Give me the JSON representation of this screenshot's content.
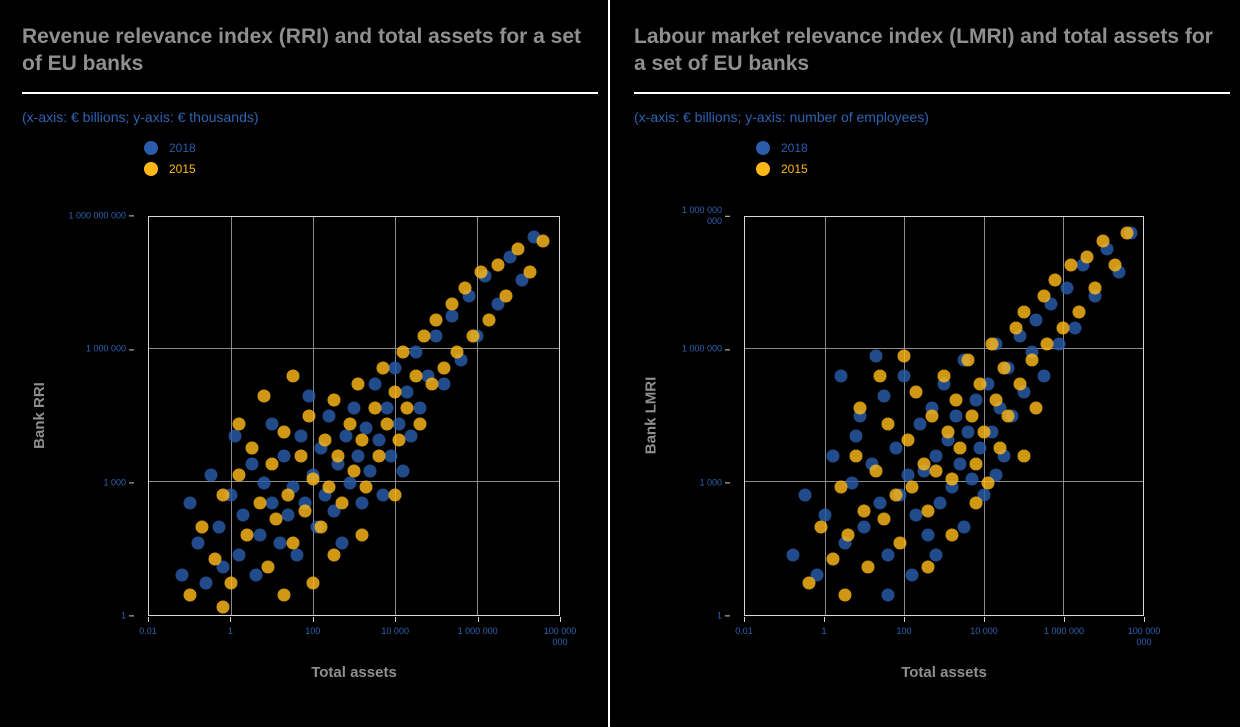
{
  "panels": [
    {
      "title": "Revenue relevance index (RRI) and total assets for a set of EU banks",
      "subtitle": "(x-axis: € billions; y-axis: € thousands)"
    },
    {
      "title": "Labour market relevance index (LMRI) and total assets for a set of EU banks",
      "subtitle": "(x-axis: € billions; y-axis: number of employees)"
    }
  ],
  "legend": {
    "items": [
      {
        "label": "2018",
        "color": "#2a5caa"
      },
      {
        "label": "2015",
        "color": "#fdb817"
      }
    ]
  },
  "colors": {
    "background": "#000000",
    "title": "#8f8f8f",
    "subtitle": "#2e63b2",
    "gridline": "#8a8a8a",
    "plot_border": "#d8d8d8",
    "blue_series": "#2a5caa",
    "gold_series": "#fdb817"
  },
  "chart_data": [
    {
      "type": "scatter",
      "title": "Revenue relevance index (RRI) and total assets for a set of EU banks",
      "xlabel": "Total assets",
      "ylabel": "Bank RRI",
      "x_axis_units": "€ billions",
      "y_axis_units": "€ thousands",
      "x_scale": "log",
      "y_scale": "log",
      "x_ticks": [
        "0.01",
        "1",
        "100",
        "10 000",
        "1 000 000",
        "100 000 000"
      ],
      "y_ticks": [
        "1",
        "1 000",
        "1 000 000",
        "1 000 000 000"
      ],
      "points_format": "each point is [x,y] as fraction of plot area on log-log axes",
      "series": [
        {
          "name": "2018",
          "color": "#2a5caa",
          "points": [
            [
              0.08,
              0.1
            ],
            [
              0.1,
              0.28
            ],
            [
              0.12,
              0.18
            ],
            [
              0.14,
              0.08
            ],
            [
              0.15,
              0.35
            ],
            [
              0.17,
              0.22
            ],
            [
              0.18,
              0.12
            ],
            [
              0.2,
              0.3
            ],
            [
              0.21,
              0.45
            ],
            [
              0.22,
              0.15
            ],
            [
              0.23,
              0.25
            ],
            [
              0.25,
              0.38
            ],
            [
              0.26,
              0.1
            ],
            [
              0.27,
              0.2
            ],
            [
              0.28,
              0.33
            ],
            [
              0.3,
              0.28
            ],
            [
              0.3,
              0.48
            ],
            [
              0.32,
              0.18
            ],
            [
              0.33,
              0.4
            ],
            [
              0.34,
              0.25
            ],
            [
              0.35,
              0.32
            ],
            [
              0.36,
              0.15
            ],
            [
              0.37,
              0.45
            ],
            [
              0.38,
              0.28
            ],
            [
              0.39,
              0.55
            ],
            [
              0.4,
              0.35
            ],
            [
              0.41,
              0.22
            ],
            [
              0.42,
              0.42
            ],
            [
              0.43,
              0.3
            ],
            [
              0.44,
              0.5
            ],
            [
              0.45,
              0.26
            ],
            [
              0.46,
              0.38
            ],
            [
              0.47,
              0.18
            ],
            [
              0.48,
              0.45
            ],
            [
              0.49,
              0.33
            ],
            [
              0.5,
              0.52
            ],
            [
              0.51,
              0.4
            ],
            [
              0.52,
              0.28
            ],
            [
              0.53,
              0.47
            ],
            [
              0.54,
              0.36
            ],
            [
              0.55,
              0.58
            ],
            [
              0.56,
              0.44
            ],
            [
              0.57,
              0.3
            ],
            [
              0.58,
              0.52
            ],
            [
              0.59,
              0.4
            ],
            [
              0.6,
              0.62
            ],
            [
              0.61,
              0.48
            ],
            [
              0.62,
              0.36
            ],
            [
              0.63,
              0.56
            ],
            [
              0.64,
              0.45
            ],
            [
              0.65,
              0.66
            ],
            [
              0.66,
              0.52
            ],
            [
              0.68,
              0.6
            ],
            [
              0.7,
              0.7
            ],
            [
              0.72,
              0.58
            ],
            [
              0.74,
              0.75
            ],
            [
              0.76,
              0.64
            ],
            [
              0.78,
              0.8
            ],
            [
              0.8,
              0.7
            ],
            [
              0.82,
              0.85
            ],
            [
              0.85,
              0.78
            ],
            [
              0.88,
              0.9
            ],
            [
              0.91,
              0.84
            ],
            [
              0.94,
              0.95
            ]
          ]
        },
        {
          "name": "2015",
          "color": "#fdb817",
          "points": [
            [
              0.1,
              0.05
            ],
            [
              0.13,
              0.22
            ],
            [
              0.16,
              0.14
            ],
            [
              0.18,
              0.3
            ],
            [
              0.2,
              0.08
            ],
            [
              0.22,
              0.35
            ],
            [
              0.24,
              0.2
            ],
            [
              0.25,
              0.42
            ],
            [
              0.27,
              0.28
            ],
            [
              0.29,
              0.12
            ],
            [
              0.3,
              0.38
            ],
            [
              0.31,
              0.24
            ],
            [
              0.33,
              0.46
            ],
            [
              0.34,
              0.3
            ],
            [
              0.35,
              0.18
            ],
            [
              0.37,
              0.4
            ],
            [
              0.38,
              0.26
            ],
            [
              0.39,
              0.5
            ],
            [
              0.4,
              0.34
            ],
            [
              0.42,
              0.22
            ],
            [
              0.43,
              0.44
            ],
            [
              0.44,
              0.32
            ],
            [
              0.45,
              0.54
            ],
            [
              0.46,
              0.4
            ],
            [
              0.47,
              0.28
            ],
            [
              0.49,
              0.48
            ],
            [
              0.5,
              0.36
            ],
            [
              0.51,
              0.58
            ],
            [
              0.52,
              0.44
            ],
            [
              0.53,
              0.32
            ],
            [
              0.55,
              0.52
            ],
            [
              0.56,
              0.4
            ],
            [
              0.57,
              0.62
            ],
            [
              0.58,
              0.48
            ],
            [
              0.6,
              0.56
            ],
            [
              0.61,
              0.44
            ],
            [
              0.62,
              0.66
            ],
            [
              0.63,
              0.52
            ],
            [
              0.65,
              0.6
            ],
            [
              0.66,
              0.48
            ],
            [
              0.67,
              0.7
            ],
            [
              0.69,
              0.58
            ],
            [
              0.7,
              0.74
            ],
            [
              0.72,
              0.62
            ],
            [
              0.74,
              0.78
            ],
            [
              0.75,
              0.66
            ],
            [
              0.77,
              0.82
            ],
            [
              0.79,
              0.7
            ],
            [
              0.81,
              0.86
            ],
            [
              0.83,
              0.74
            ],
            [
              0.85,
              0.88
            ],
            [
              0.87,
              0.8
            ],
            [
              0.9,
              0.92
            ],
            [
              0.93,
              0.86
            ],
            [
              0.96,
              0.94
            ],
            [
              0.28,
              0.55
            ],
            [
              0.35,
              0.6
            ],
            [
              0.22,
              0.48
            ],
            [
              0.45,
              0.15
            ],
            [
              0.52,
              0.2
            ],
            [
              0.6,
              0.3
            ],
            [
              0.4,
              0.08
            ],
            [
              0.33,
              0.05
            ],
            [
              0.18,
              0.02
            ]
          ]
        }
      ]
    },
    {
      "type": "scatter",
      "title": "Labour market relevance index (LMRI) and total assets for a set of EU banks",
      "xlabel": "Total assets",
      "ylabel": "Bank LMRI",
      "x_axis_units": "€ billions",
      "y_axis_units": "number of employees",
      "x_scale": "log",
      "y_scale": "log",
      "x_ticks": [
        "0.01",
        "1",
        "100",
        "10 000",
        "1 000 000",
        "100 000 000"
      ],
      "y_ticks": [
        "1",
        "1 000",
        "1 000 000",
        "1 000 000 000"
      ],
      "points_format": "each point is [x,y] as fraction of plot area on log-log axes",
      "series": [
        {
          "name": "2018",
          "color": "#2a5caa",
          "points": [
            [
              0.12,
              0.15
            ],
            [
              0.15,
              0.3
            ],
            [
              0.18,
              0.1
            ],
            [
              0.2,
              0.25
            ],
            [
              0.22,
              0.4
            ],
            [
              0.25,
              0.18
            ],
            [
              0.27,
              0.33
            ],
            [
              0.29,
              0.5
            ],
            [
              0.3,
              0.22
            ],
            [
              0.32,
              0.38
            ],
            [
              0.34,
              0.28
            ],
            [
              0.35,
              0.55
            ],
            [
              0.36,
              0.15
            ],
            [
              0.38,
              0.42
            ],
            [
              0.39,
              0.3
            ],
            [
              0.4,
              0.6
            ],
            [
              0.41,
              0.35
            ],
            [
              0.43,
              0.25
            ],
            [
              0.44,
              0.48
            ],
            [
              0.45,
              0.36
            ],
            [
              0.46,
              0.2
            ],
            [
              0.47,
              0.52
            ],
            [
              0.48,
              0.4
            ],
            [
              0.49,
              0.28
            ],
            [
              0.5,
              0.58
            ],
            [
              0.51,
              0.44
            ],
            [
              0.52,
              0.32
            ],
            [
              0.53,
              0.5
            ],
            [
              0.54,
              0.38
            ],
            [
              0.55,
              0.64
            ],
            [
              0.56,
              0.46
            ],
            [
              0.57,
              0.34
            ],
            [
              0.58,
              0.54
            ],
            [
              0.59,
              0.42
            ],
            [
              0.6,
              0.3
            ],
            [
              0.61,
              0.58
            ],
            [
              0.62,
              0.46
            ],
            [
              0.63,
              0.68
            ],
            [
              0.64,
              0.52
            ],
            [
              0.65,
              0.4
            ],
            [
              0.66,
              0.62
            ],
            [
              0.67,
              0.5
            ],
            [
              0.69,
              0.7
            ],
            [
              0.7,
              0.56
            ],
            [
              0.72,
              0.66
            ],
            [
              0.73,
              0.74
            ],
            [
              0.75,
              0.6
            ],
            [
              0.77,
              0.78
            ],
            [
              0.79,
              0.68
            ],
            [
              0.81,
              0.82
            ],
            [
              0.83,
              0.72
            ],
            [
              0.85,
              0.88
            ],
            [
              0.88,
              0.8
            ],
            [
              0.91,
              0.92
            ],
            [
              0.94,
              0.86
            ],
            [
              0.97,
              0.96
            ],
            [
              0.24,
              0.6
            ],
            [
              0.33,
              0.65
            ],
            [
              0.28,
              0.45
            ],
            [
              0.48,
              0.15
            ],
            [
              0.55,
              0.22
            ],
            [
              0.42,
              0.1
            ],
            [
              0.36,
              0.05
            ],
            [
              0.63,
              0.35
            ]
          ]
        },
        {
          "name": "2015",
          "color": "#fdb817",
          "points": [
            [
              0.16,
              0.08
            ],
            [
              0.19,
              0.22
            ],
            [
              0.22,
              0.14
            ],
            [
              0.24,
              0.32
            ],
            [
              0.26,
              0.2
            ],
            [
              0.28,
              0.4
            ],
            [
              0.3,
              0.26
            ],
            [
              0.31,
              0.12
            ],
            [
              0.33,
              0.36
            ],
            [
              0.35,
              0.24
            ],
            [
              0.36,
              0.48
            ],
            [
              0.38,
              0.3
            ],
            [
              0.39,
              0.18
            ],
            [
              0.41,
              0.44
            ],
            [
              0.42,
              0.32
            ],
            [
              0.43,
              0.56
            ],
            [
              0.45,
              0.38
            ],
            [
              0.46,
              0.26
            ],
            [
              0.47,
              0.5
            ],
            [
              0.48,
              0.36
            ],
            [
              0.5,
              0.6
            ],
            [
              0.51,
              0.46
            ],
            [
              0.52,
              0.34
            ],
            [
              0.53,
              0.54
            ],
            [
              0.54,
              0.42
            ],
            [
              0.56,
              0.64
            ],
            [
              0.57,
              0.5
            ],
            [
              0.58,
              0.38
            ],
            [
              0.59,
              0.58
            ],
            [
              0.6,
              0.46
            ],
            [
              0.62,
              0.68
            ],
            [
              0.63,
              0.54
            ],
            [
              0.64,
              0.42
            ],
            [
              0.65,
              0.62
            ],
            [
              0.66,
              0.5
            ],
            [
              0.68,
              0.72
            ],
            [
              0.69,
              0.58
            ],
            [
              0.7,
              0.76
            ],
            [
              0.72,
              0.64
            ],
            [
              0.73,
              0.52
            ],
            [
              0.75,
              0.8
            ],
            [
              0.76,
              0.68
            ],
            [
              0.78,
              0.84
            ],
            [
              0.8,
              0.72
            ],
            [
              0.82,
              0.88
            ],
            [
              0.84,
              0.76
            ],
            [
              0.86,
              0.9
            ],
            [
              0.88,
              0.82
            ],
            [
              0.9,
              0.94
            ],
            [
              0.93,
              0.88
            ],
            [
              0.96,
              0.96
            ],
            [
              0.34,
              0.6
            ],
            [
              0.4,
              0.65
            ],
            [
              0.29,
              0.52
            ],
            [
              0.52,
              0.2
            ],
            [
              0.58,
              0.28
            ],
            [
              0.46,
              0.12
            ],
            [
              0.25,
              0.05
            ],
            [
              0.61,
              0.33
            ],
            [
              0.7,
              0.4
            ]
          ]
        }
      ]
    }
  ]
}
